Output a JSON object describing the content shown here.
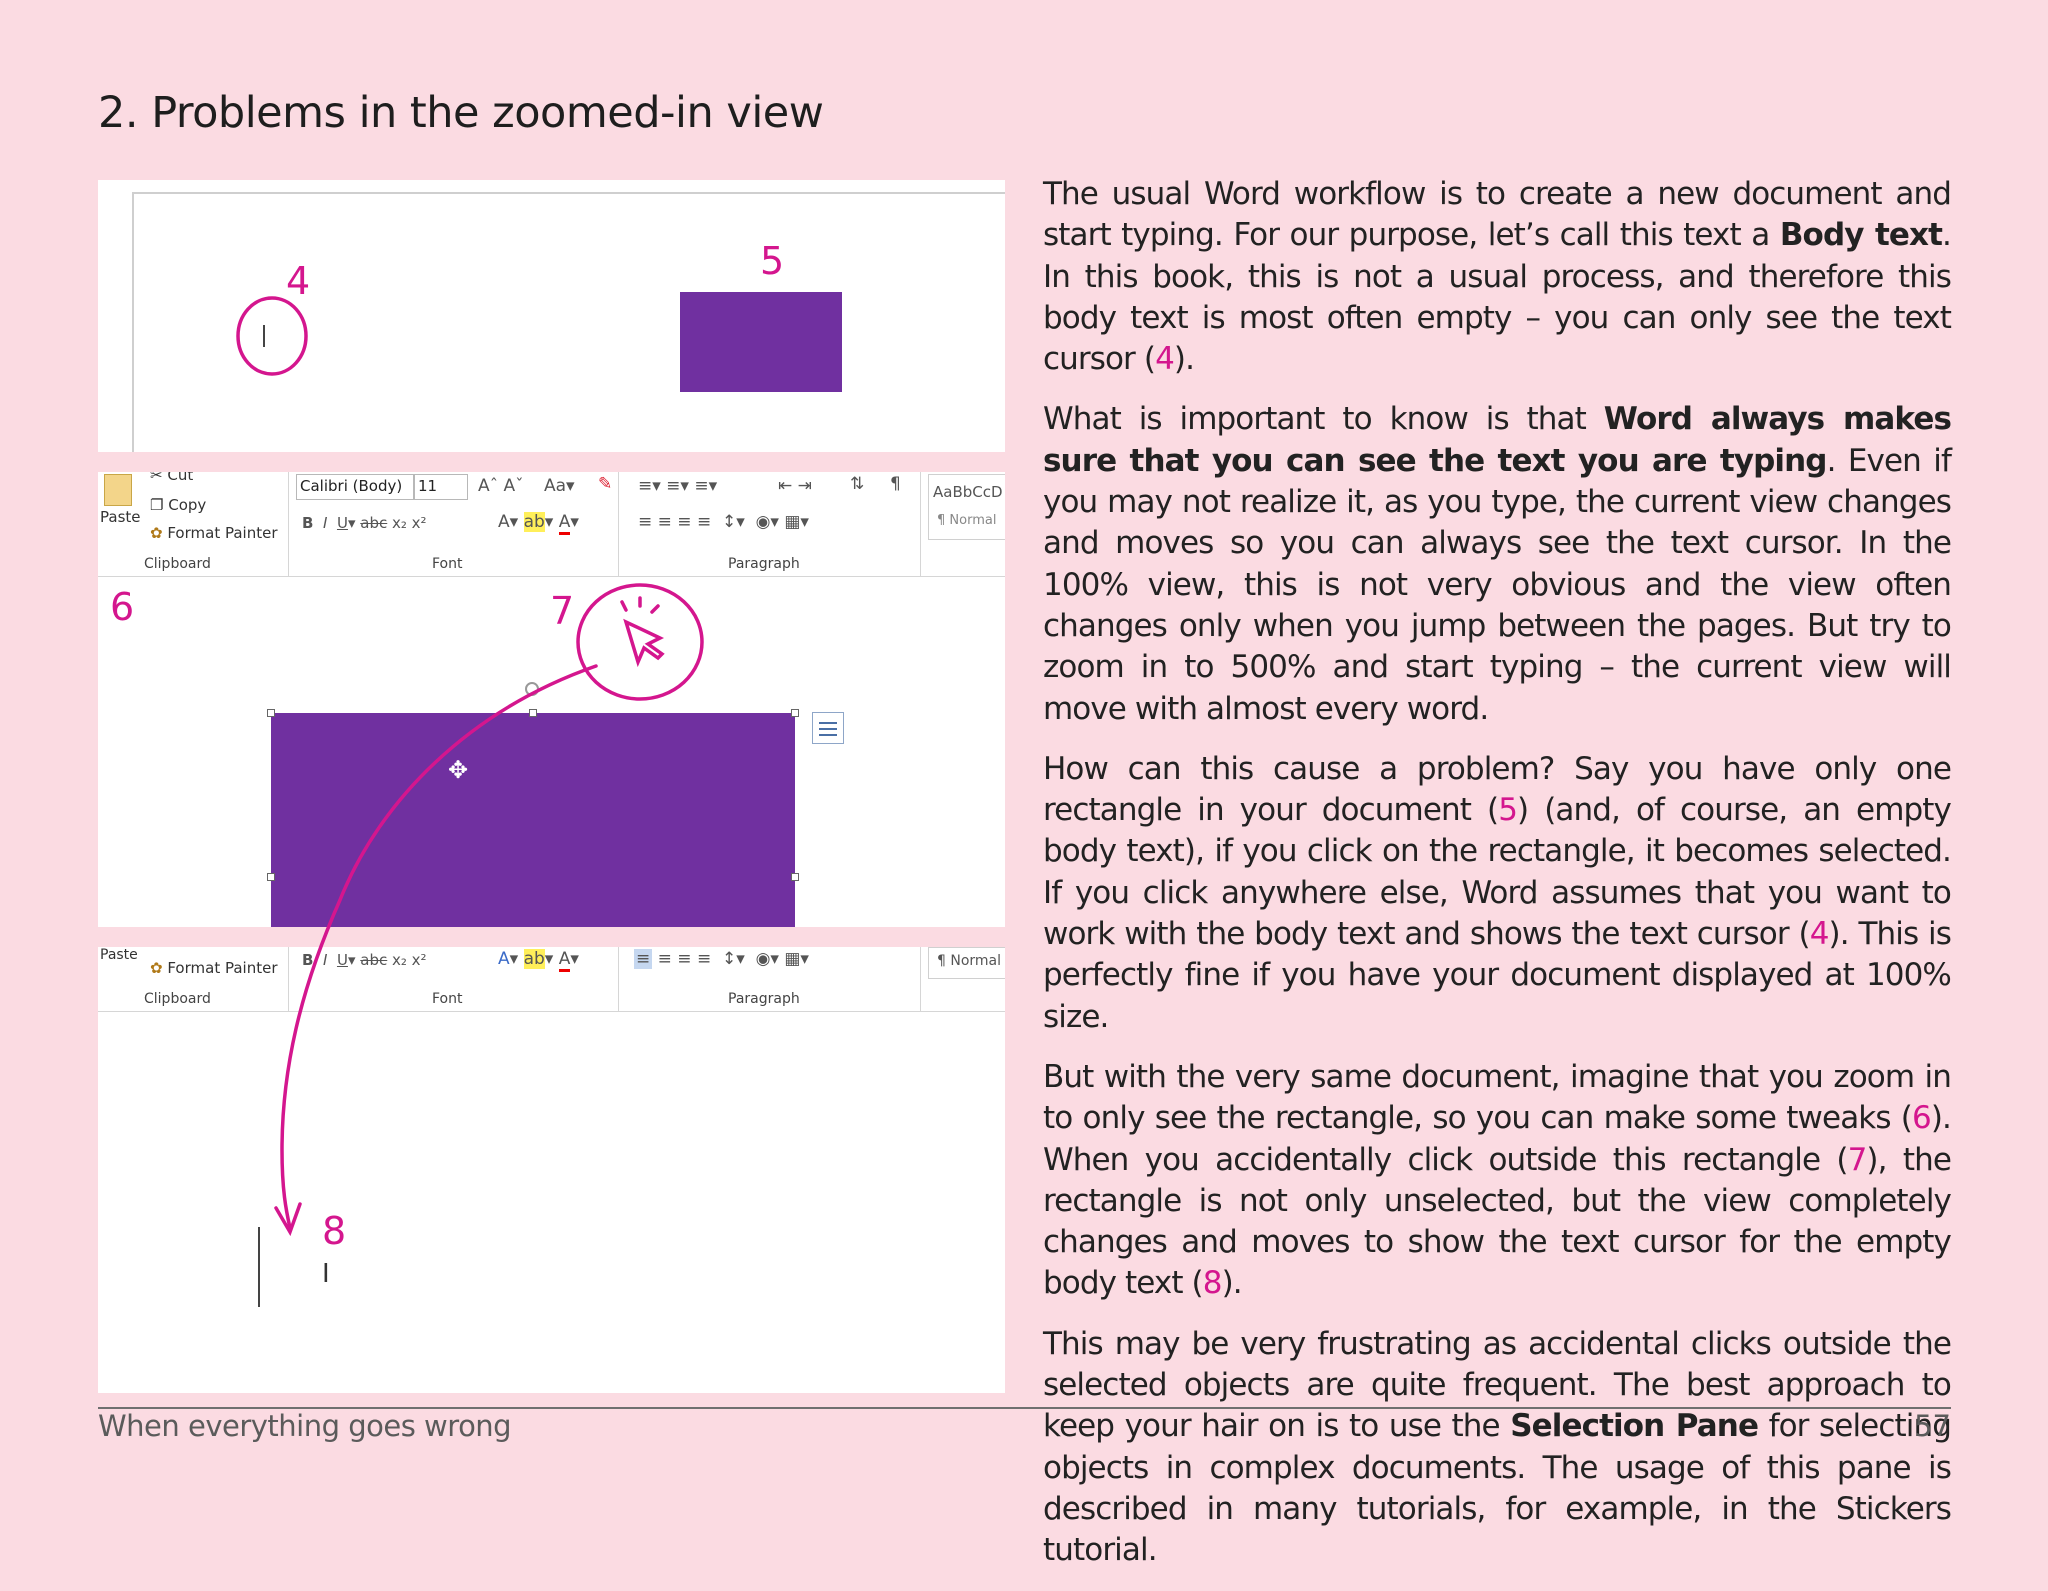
{
  "header": {
    "title": "2. Problems in the zoomed-in view"
  },
  "body": {
    "p1": {
      "pre": "The usual Word workflow is to create a new document and start typ­ing. For our purpose, let’s call this text a ",
      "bold": "Body text",
      "mid": ". In this book, this is not a usual process, and therefore this body text is most of­ten empty – you can only see the text cursor (",
      "ref": "4",
      "post": ")."
    },
    "p2": {
      "pre": "What is important to know is that ",
      "bold": "Word always makes sure that you can see the text you are typing",
      "post": ". Even if you may not realize it, as you type, the current view changes and moves so you can always see the text cursor. In the 100% view, this is not very obvious and the view often changes only when you jump between the pages. But try to zoom in to 500% and start typing – the current view will move with almost every word."
    },
    "p3": {
      "pre": "How can this cause a problem? Say you have only one rectangle in your document (",
      "ref1": "5",
      "mid": ") (and, of course, an empty body text), if you click on the rectangle, it becomes selected. If you click anywhere else, Word assumes that you want to work with the body text and shows the text cursor (",
      "ref2": "4",
      "post": "). This is perfectly fine if you have your document displayed at 100% size."
    },
    "p4": {
      "pre": "But with the very same document, imagine that you zoom in to only see the rectangle, so you can make some tweaks (",
      "ref1": "6",
      "mid1": "). When you ac­cidentally click outside this rectangle (",
      "ref2": "7",
      "mid2": "), the rectangle is not only unselected, but the view completely changes and moves to show the text cursor for the empty body text (",
      "ref3": "8",
      "post": ")."
    },
    "p5": {
      "pre": "This may be very frustrating as accidental clicks outside the se­lected objects are quite frequent. The best approach to keep your hair on is to use the ",
      "bold": "Selection Pane",
      "post": " for selecting objects in complex documents. The usage of this pane is described in many tutorials, for example, in the Stickers tutorial."
    }
  },
  "annotations": {
    "a4": "4",
    "a5": "5",
    "a6": "6",
    "a7": "7",
    "a8": "8"
  },
  "ribbon1": {
    "cut": "Cut",
    "copy": "Copy",
    "paste": "Paste",
    "format_painter": "Format Painter",
    "font_name": "Calibri (Body)",
    "font_size": "11",
    "clipboard": "Clipboard",
    "font": "Font",
    "paragraph": "Paragraph",
    "style_preview": "AaBbCcD",
    "style_normal": "¶ Normal"
  },
  "ribbon2": {
    "paste": "Paste",
    "format_painter": "Format Painter",
    "clipboard": "Clipboard",
    "font": "Font",
    "paragraph": "Paragraph",
    "style_normal": "¶ Normal"
  },
  "footer": {
    "left": "When everything goes wrong",
    "page": "57"
  },
  "colors": {
    "background": "#fbdbe2",
    "annotation": "#d4168e",
    "shape": "#7030a0"
  }
}
